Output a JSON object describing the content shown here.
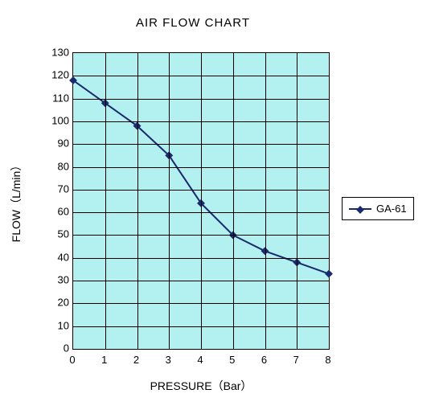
{
  "chart": {
    "type": "line",
    "title": "AIR FLOW CHART",
    "title_fontsize": 15,
    "background_color": "#ffffff",
    "plot_background_color": "#b3f0f0",
    "grid_color": "#000000",
    "label_fontsize": 14,
    "tick_fontsize": 13,
    "x_axis": {
      "label": "PRESSURE（Bar）",
      "min": 0,
      "max": 8,
      "tick_step": 1,
      "ticks": [
        0,
        1,
        2,
        3,
        4,
        5,
        6,
        7,
        8
      ]
    },
    "y_axis": {
      "label": "FLOW（L/min）",
      "min": 0,
      "max": 130,
      "tick_step": 10,
      "ticks": [
        0,
        10,
        20,
        30,
        40,
        50,
        60,
        70,
        80,
        90,
        100,
        110,
        120,
        130
      ]
    },
    "series": [
      {
        "name": "GA-61",
        "color": "#1a2a6c",
        "line_width": 2,
        "marker": "diamond",
        "marker_size": 7,
        "x": [
          0,
          1,
          2,
          3,
          4,
          5,
          6,
          7,
          8
        ],
        "y": [
          118,
          108,
          98,
          85,
          64,
          50,
          43,
          38,
          33
        ]
      }
    ],
    "legend": {
      "position": "right",
      "border_color": "#000000",
      "background_color": "#ffffff"
    }
  }
}
